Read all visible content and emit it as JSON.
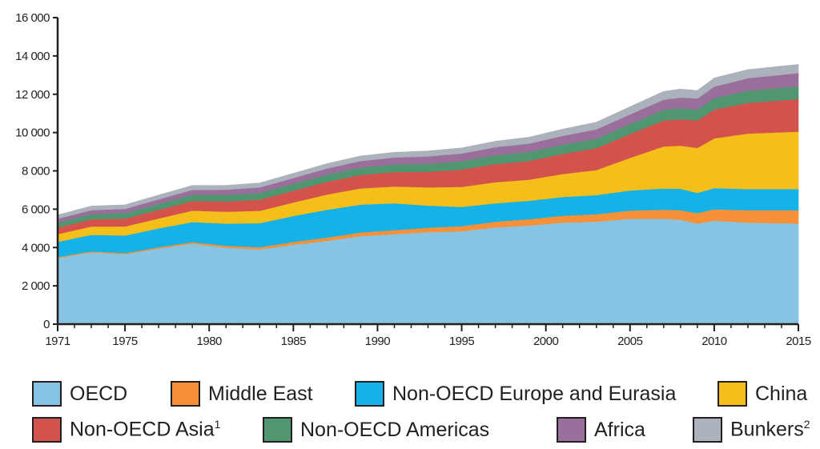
{
  "chart_data": {
    "type": "area",
    "stacked": true,
    "title": "",
    "xlabel": "",
    "ylabel": "",
    "x": [
      1971,
      1973,
      1975,
      1977,
      1979,
      1981,
      1983,
      1985,
      1987,
      1989,
      1991,
      1993,
      1995,
      1997,
      1999,
      2001,
      2003,
      2005,
      2007,
      2008,
      2009,
      2010,
      2012,
      2015
    ],
    "xlim": [
      1971,
      2015
    ],
    "ylim": [
      0,
      16000
    ],
    "x_ticks": [
      1971,
      1975,
      1980,
      1985,
      1990,
      1995,
      2000,
      2005,
      2010,
      2015
    ],
    "y_ticks": [
      0,
      2000,
      4000,
      6000,
      8000,
      10000,
      12000,
      14000,
      16000
    ],
    "x_tick_labels": [
      "1971",
      "1975",
      "1980",
      "1985",
      "1990",
      "1995",
      "2000",
      "2005",
      "2010",
      "2015"
    ],
    "y_tick_labels": [
      "0",
      "2 000",
      "4 000",
      "6 000",
      "8 000",
      "10 000",
      "12 000",
      "14 000",
      "16 000"
    ],
    "grid": false,
    "legend_position": "bottom",
    "series": [
      {
        "name": "OECD",
        "sup": "",
        "color": "#87c4e4",
        "values": [
          3450,
          3750,
          3650,
          3950,
          4200,
          4000,
          3900,
          4150,
          4350,
          4600,
          4700,
          4800,
          4850,
          5050,
          5150,
          5300,
          5350,
          5500,
          5500,
          5450,
          5250,
          5400,
          5300,
          5250
        ]
      },
      {
        "name": "Middle East",
        "sup": "",
        "color": "#f6913a",
        "values": [
          50,
          55,
          60,
          70,
          80,
          100,
          120,
          150,
          170,
          190,
          210,
          240,
          270,
          300,
          330,
          360,
          390,
          430,
          480,
          500,
          550,
          600,
          650,
          700
        ]
      },
      {
        "name": "Non-OECD Europe and Eurasia",
        "sup": "",
        "color": "#14b2e6",
        "values": [
          800,
          860,
          920,
          980,
          1050,
          1150,
          1250,
          1350,
          1450,
          1450,
          1400,
          1150,
          1000,
          960,
          960,
          980,
          1000,
          1050,
          1100,
          1120,
          1050,
          1100,
          1100,
          1100
        ]
      },
      {
        "name": "China",
        "sup": "",
        "color": "#f4be1b",
        "values": [
          400,
          430,
          470,
          520,
          600,
          620,
          650,
          700,
          800,
          850,
          880,
          950,
          1050,
          1100,
          1100,
          1200,
          1300,
          1700,
          2200,
          2250,
          2350,
          2600,
          2900,
          3000
        ]
      },
      {
        "name": "Non-OECD Asia",
        "sup": "1",
        "color": "#d3534c",
        "values": [
          350,
          380,
          410,
          450,
          500,
          540,
          580,
          620,
          660,
          700,
          750,
          820,
          900,
          950,
          980,
          1050,
          1150,
          1250,
          1350,
          1380,
          1430,
          1500,
          1600,
          1700
        ]
      },
      {
        "name": "Non-OECD Americas",
        "sup": "",
        "color": "#509771",
        "values": [
          250,
          270,
          290,
          310,
          330,
          340,
          350,
          360,
          380,
          390,
          400,
          420,
          440,
          460,
          470,
          480,
          500,
          520,
          560,
          580,
          580,
          600,
          640,
          660
        ]
      },
      {
        "name": "Africa",
        "sup": "",
        "color": "#9b6f9b",
        "values": [
          200,
          210,
          220,
          240,
          250,
          270,
          290,
          300,
          320,
          340,
          360,
          380,
          400,
          420,
          440,
          460,
          480,
          500,
          530,
          550,
          570,
          600,
          650,
          700
        ]
      },
      {
        "name": "Bunkers",
        "sup": "2",
        "color": "#acb2bb",
        "values": [
          200,
          210,
          210,
          220,
          230,
          230,
          230,
          240,
          250,
          260,
          270,
          280,
          290,
          310,
          330,
          350,
          370,
          400,
          430,
          440,
          420,
          450,
          450,
          450
        ]
      }
    ]
  }
}
